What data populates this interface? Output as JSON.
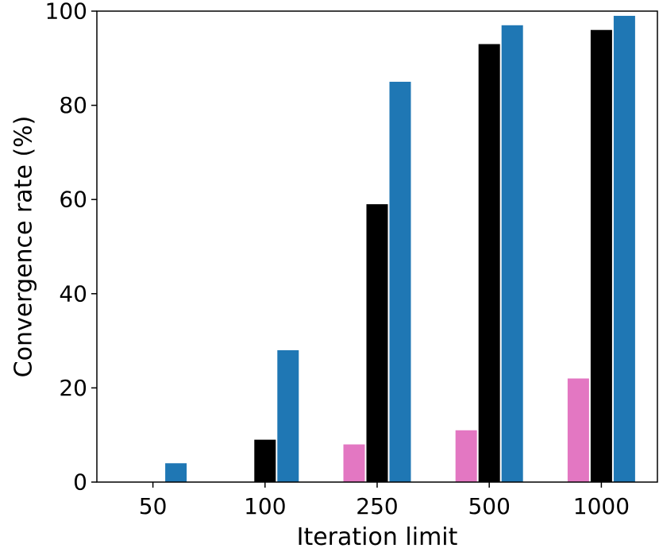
{
  "chart_data": {
    "type": "bar",
    "xlabel": "Iteration limit",
    "ylabel": "Convergence rate (%)",
    "ylim": [
      0,
      100
    ],
    "yticks": [
      0,
      20,
      40,
      60,
      80,
      100
    ],
    "categories": [
      "50",
      "100",
      "250",
      "500",
      "1000"
    ],
    "series": [
      {
        "color": "#e377c2",
        "values": [
          0,
          0,
          8,
          11,
          22
        ]
      },
      {
        "color": "#000000",
        "values": [
          0,
          9,
          59,
          93,
          96
        ]
      },
      {
        "color": "#1f77b4",
        "values": [
          4,
          28,
          85,
          97,
          99
        ]
      }
    ],
    "grid": false,
    "legend": "none"
  }
}
